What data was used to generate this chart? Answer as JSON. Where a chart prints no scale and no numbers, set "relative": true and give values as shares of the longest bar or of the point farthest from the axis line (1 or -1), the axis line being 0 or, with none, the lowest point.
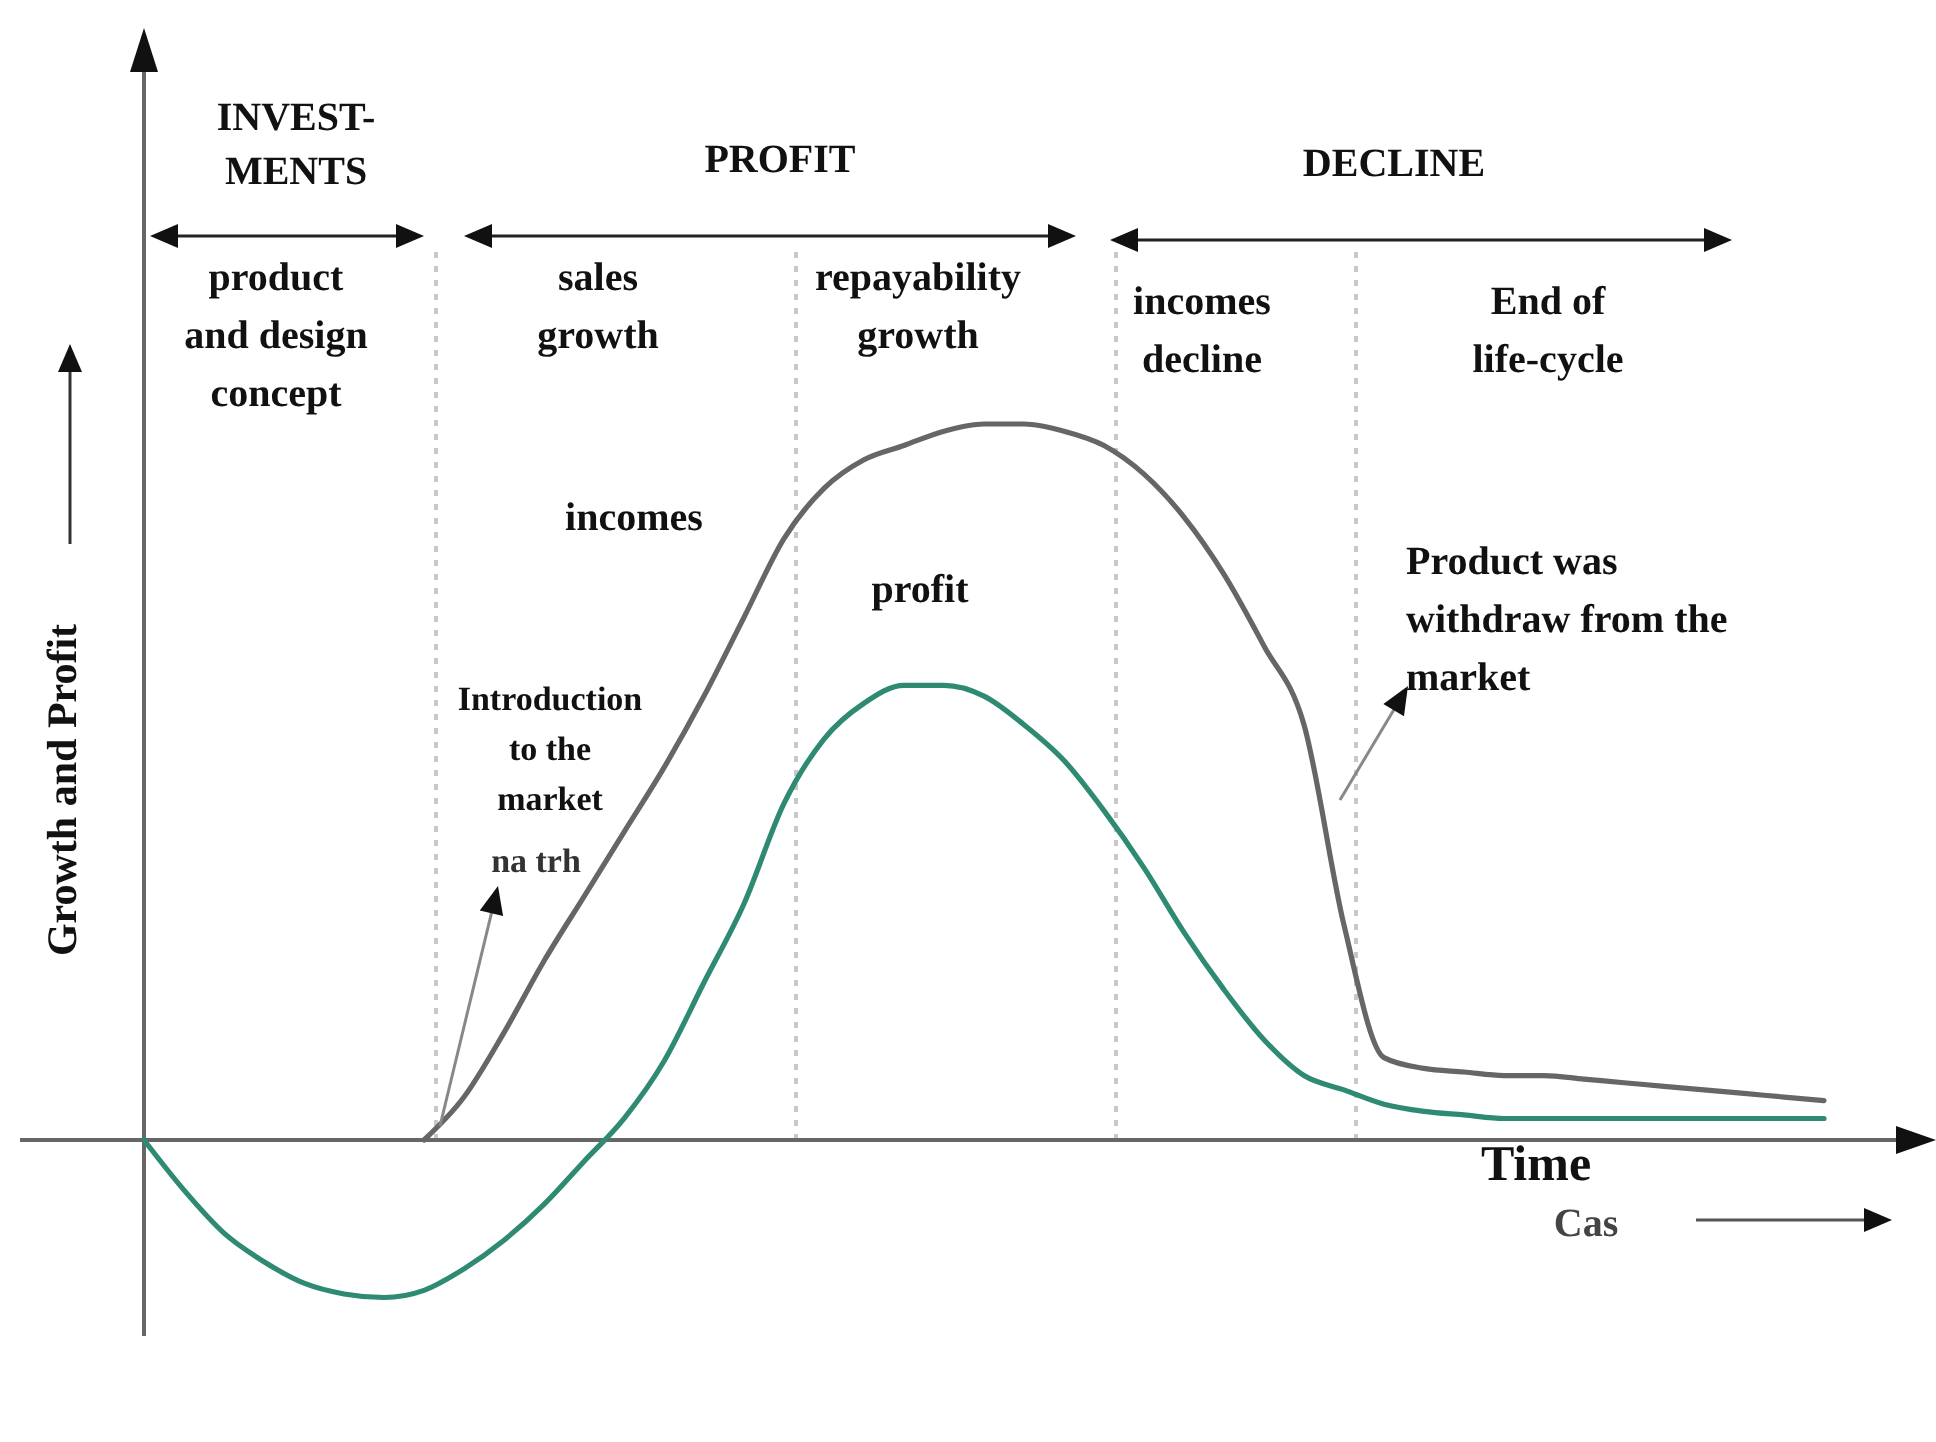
{
  "chart_data": {
    "type": "line",
    "relative": true,
    "xlabel": "Time",
    "ylabel": "Growth and Profit",
    "line_style": "solid",
    "categories": [
      null,
      null,
      null,
      null,
      null,
      null,
      null,
      null,
      null,
      null,
      null,
      null,
      null,
      null,
      null,
      null,
      null,
      null,
      null,
      null,
      null,
      null,
      null,
      null,
      null,
      null,
      null,
      null,
      null,
      null,
      null,
      null,
      null,
      null,
      null,
      null,
      null,
      null,
      null,
      null,
      null,
      null,
      null
    ],
    "series": [
      {
        "name": "incomes",
        "color": "#666666",
        "values": [
          null,
          null,
          null,
          null,
          null,
          null,
          null,
          0,
          0.06,
          0.15,
          0.25,
          0.34,
          0.43,
          0.52,
          0.62,
          0.73,
          0.84,
          0.91,
          0.95,
          0.97,
          0.99,
          1,
          1,
          0.99,
          0.97,
          0.93,
          0.87,
          0.79,
          0.69,
          0.58,
          0.3,
          0.115,
          0.1,
          0.095,
          0.09,
          0.09,
          0.085,
          0.08,
          0.075,
          0.07,
          0.065,
          0.06,
          0.055
        ]
      },
      {
        "name": "profit",
        "color": "#2f8a74",
        "values": [
          0,
          -0.07,
          -0.13,
          -0.17,
          -0.2,
          -0.215,
          -0.22,
          -0.21,
          -0.18,
          -0.14,
          -0.09,
          -0.03,
          0.03,
          0.11,
          0.22,
          0.33,
          0.47,
          0.56,
          0.61,
          0.635,
          0.635,
          0.62,
          0.58,
          0.53,
          0.46,
          0.38,
          0.29,
          0.21,
          0.14,
          0.09,
          0.07,
          0.05,
          0.04,
          0.035,
          0.03,
          0.03,
          0.03,
          0.03,
          0.03,
          0.03,
          0.03,
          0.03,
          0.03
        ]
      }
    ],
    "annotations": [
      "INVEST-\nMENTS",
      "PROFIT",
      "DECLINE",
      "product\nand design\nconcept",
      "sales\ngrowth",
      "repayability\ngrowth",
      "incomes\ndecline",
      "End of\nlife-cycle",
      "Introduction\nto the\nmarket",
      "na trh",
      "Product was\nwithdraw from the\nmarket",
      "Cas"
    ]
  }
}
